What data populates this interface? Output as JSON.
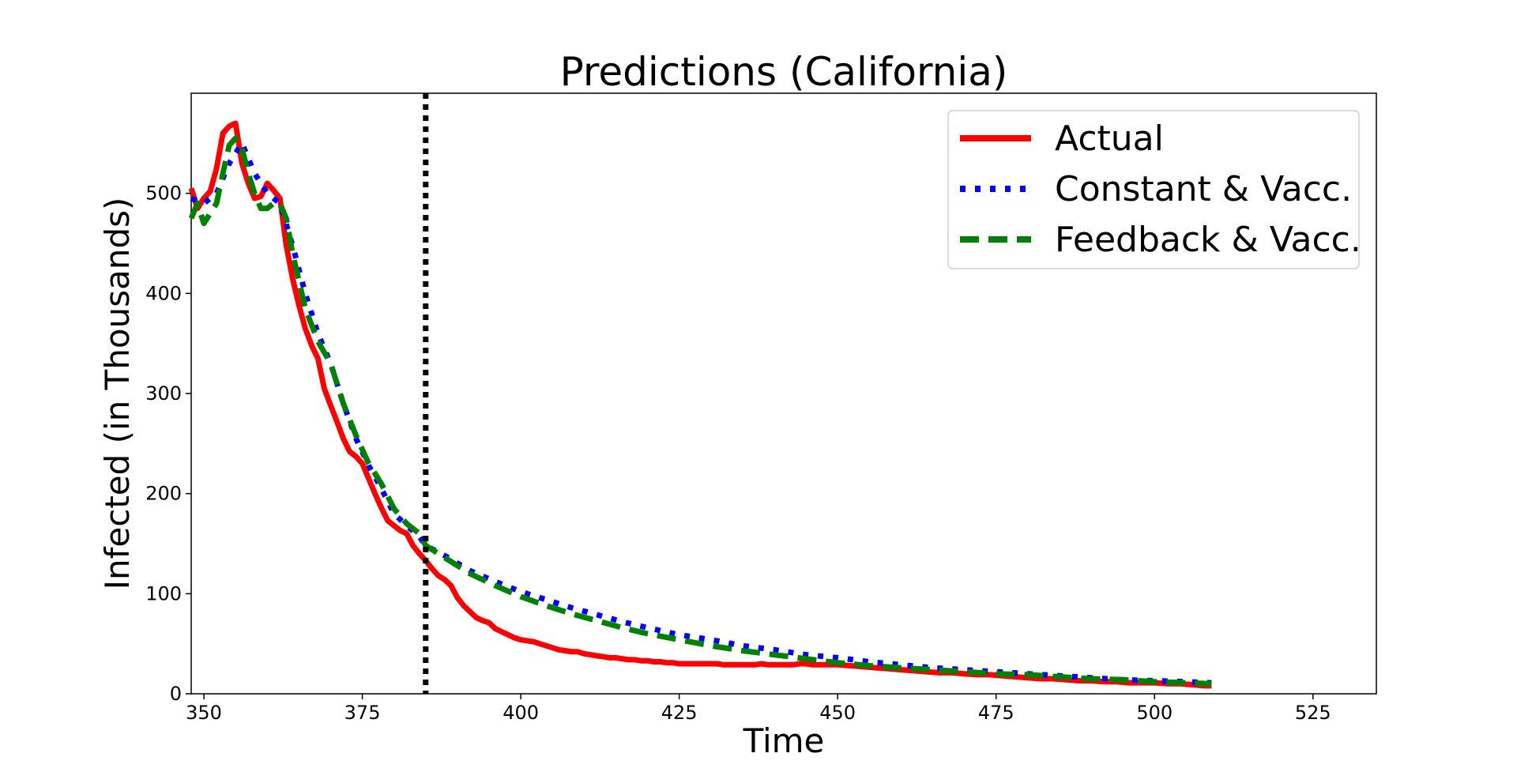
{
  "chart_data": {
    "type": "line",
    "title": "Predictions (California)",
    "xlabel": "Time",
    "ylabel": "Infected (in Thousands)",
    "xlim": [
      348,
      535
    ],
    "ylim": [
      0,
      600
    ],
    "xticks": [
      350,
      375,
      400,
      425,
      450,
      475,
      500,
      525
    ],
    "yticks": [
      0,
      100,
      200,
      300,
      400,
      500
    ],
    "grid": false,
    "legend_position": "top-right",
    "vline": {
      "x": 385,
      "style": "dotted",
      "color": "#000000"
    },
    "series": [
      {
        "name": "Actual",
        "color": "#ff0000",
        "style": "solid",
        "x": [
          348,
          349,
          350,
          351,
          352,
          353,
          354,
          355,
          356,
          357,
          358,
          359,
          360,
          361,
          362,
          363,
          364,
          365,
          366,
          367,
          368,
          369,
          370,
          371,
          372,
          373,
          374,
          375,
          376,
          377,
          378,
          379,
          380,
          381,
          382,
          383,
          384,
          385,
          386,
          387,
          388,
          389,
          390,
          391,
          392,
          393,
          394,
          395,
          396,
          397,
          398,
          399,
          400,
          401,
          402,
          403,
          404,
          405,
          406,
          407,
          408,
          409,
          410,
          411,
          412,
          413,
          414,
          415,
          416,
          417,
          418,
          419,
          420,
          421,
          422,
          423,
          424,
          425,
          426,
          427,
          428,
          429,
          430,
          431,
          432,
          433,
          434,
          435,
          436,
          437,
          438,
          439,
          440,
          441,
          442,
          443,
          444,
          445,
          446,
          447,
          448,
          449,
          450,
          452,
          454,
          456,
          458,
          460,
          462,
          464,
          466,
          468,
          470,
          472,
          474,
          476,
          478,
          480,
          482,
          484,
          486,
          488,
          490,
          492,
          494,
          496,
          498,
          500,
          502,
          504,
          506,
          508,
          509
        ],
        "y": [
          505,
          485,
          495,
          502,
          525,
          560,
          567,
          570,
          530,
          510,
          495,
          497,
          510,
          503,
          495,
          448,
          415,
          388,
          365,
          348,
          335,
          305,
          288,
          272,
          255,
          242,
          237,
          230,
          215,
          200,
          186,
          173,
          168,
          163,
          160,
          148,
          140,
          133,
          125,
          118,
          114,
          108,
          96,
          88,
          82,
          76,
          73,
          71,
          65,
          62,
          59,
          56,
          54,
          53,
          52,
          50,
          48,
          46,
          44,
          43,
          42,
          42,
          40,
          39,
          38,
          37,
          36,
          36,
          35,
          34,
          34,
          33,
          33,
          32,
          32,
          31,
          31,
          30,
          30,
          30,
          30,
          30,
          30,
          30,
          29,
          29,
          29,
          29,
          29,
          29,
          30,
          29,
          29,
          29,
          29,
          29,
          30,
          30,
          29,
          29,
          29,
          29,
          29,
          28,
          27,
          26,
          25,
          24,
          23,
          22,
          21,
          21,
          20,
          19,
          19,
          18,
          17,
          16,
          15,
          15,
          14,
          13,
          13,
          12,
          12,
          11,
          11,
          11,
          10,
          10,
          9,
          8,
          8
        ]
      },
      {
        "name": "Constant & Vacc.",
        "color": "#0000ff",
        "style": "dotted",
        "x": [
          348,
          350,
          352,
          354,
          356,
          358,
          360,
          362,
          364,
          366,
          368,
          370,
          372,
          374,
          376,
          378,
          380,
          382,
          384,
          385,
          388,
          392,
          396,
          400,
          404,
          408,
          412,
          416,
          420,
          425,
          430,
          435,
          440,
          445,
          450,
          455,
          460,
          465,
          470,
          475,
          480,
          485,
          490,
          495,
          500,
          505,
          509
        ],
        "y": [
          495,
          490,
          500,
          530,
          550,
          520,
          500,
          490,
          448,
          400,
          360,
          330,
          290,
          255,
          228,
          205,
          180,
          168,
          157,
          148,
          138,
          123,
          112,
          102,
          94,
          86,
          79,
          72,
          66,
          59,
          54,
          48,
          44,
          39,
          36,
          32,
          29,
          26,
          24,
          22,
          20,
          18,
          16,
          14,
          13,
          12,
          11
        ]
      },
      {
        "name": "Feedback & Vacc.",
        "color": "#008000",
        "style": "dashed",
        "x": [
          348,
          349,
          350,
          351,
          352,
          353,
          354,
          355,
          356,
          357,
          358,
          359,
          360,
          361,
          362,
          363,
          364,
          366,
          368,
          370,
          372,
          374,
          376,
          378,
          380,
          382,
          384,
          385,
          388,
          392,
          396,
          400,
          404,
          408,
          412,
          416,
          420,
          425,
          430,
          435,
          440,
          445,
          450,
          455,
          460,
          465,
          470,
          475,
          480,
          485,
          490,
          495,
          500,
          505,
          509
        ],
        "y": [
          475,
          490,
          470,
          480,
          490,
          520,
          548,
          555,
          545,
          520,
          500,
          485,
          485,
          490,
          490,
          475,
          440,
          385,
          352,
          330,
          290,
          258,
          230,
          210,
          185,
          170,
          160,
          148,
          136,
          120,
          108,
          97,
          88,
          80,
          73,
          66,
          60,
          54,
          48,
          43,
          39,
          35,
          31,
          28,
          26,
          24,
          22,
          20,
          19,
          17,
          15,
          14,
          12,
          11,
          10
        ]
      }
    ]
  }
}
